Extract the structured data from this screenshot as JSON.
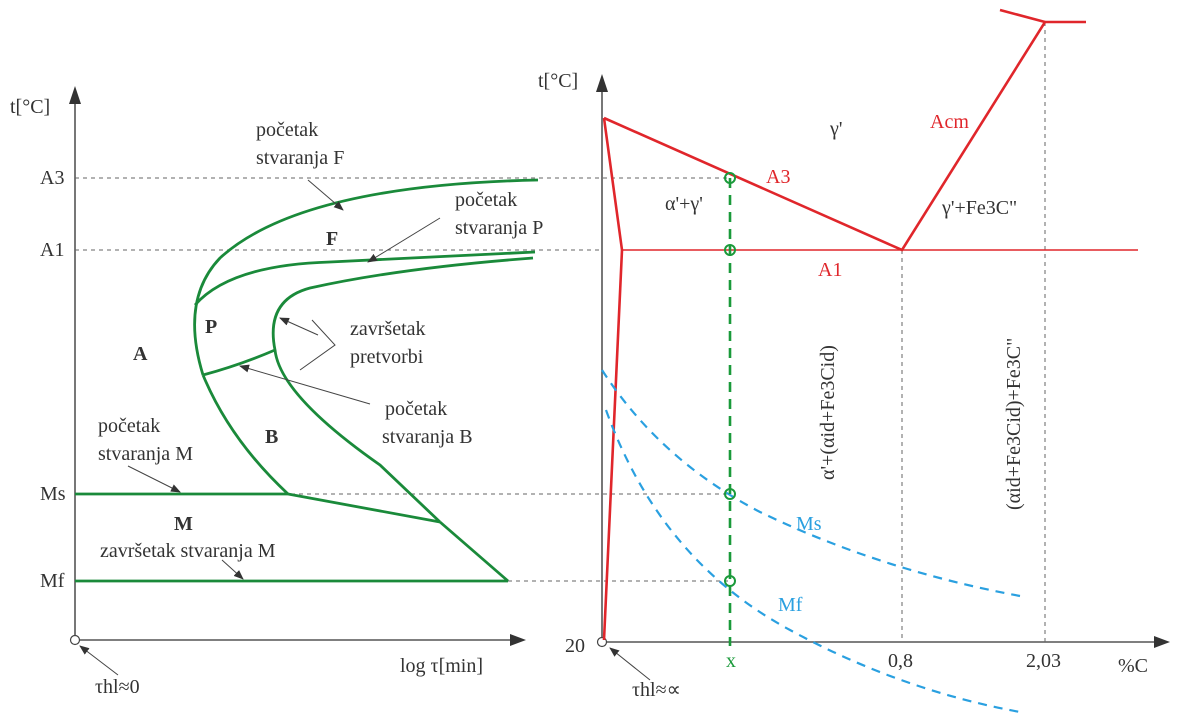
{
  "left": {
    "y_axis_label": "t[°C]",
    "x_axis_label": "log τ[min]",
    "origin_label": "τhl≈0",
    "ticks": {
      "a3": "A3",
      "a1": "A1",
      "ms": "Ms",
      "mf": "Mf"
    },
    "regions": {
      "A": "A",
      "F": "F",
      "P": "P",
      "B": "B",
      "M": "M"
    },
    "notes": {
      "start_f_1": "početak",
      "start_f_2": "stvaranja F",
      "start_p_1": "početak",
      "start_p_2": "stvaranja P",
      "end_t_1": "završetak",
      "end_t_2": "pretvorbi",
      "start_b_1": "početak",
      "start_b_2": "stvaranja B",
      "start_m_1": "početak",
      "start_m_2": "stvaranja M",
      "end_m": "završetak stvaranja M"
    }
  },
  "right": {
    "y_axis_label": "t[°C]",
    "x_axis_label": "%C",
    "origin_value": "20",
    "origin_label": "τhl≈∝",
    "x_marker": "x",
    "x_ticks": [
      "0,8",
      "2,03"
    ],
    "curves": {
      "a3": "A3",
      "a1": "A1",
      "acm": "Acm",
      "ms": "Ms",
      "mf": "Mf"
    },
    "regions": {
      "gamma": "γ'",
      "alpha_gamma": "α'+γ'",
      "gamma_fe3c": "γ'+Fe3C\"",
      "alpha_mix": "α'+(αid+Fe3Cid)",
      "pearlite_mix": "(αid+Fe3Cid)+Fe3C\""
    }
  },
  "colors": {
    "green": "#1a8a3a",
    "red": "#e0262b",
    "blue": "#2aa0e0"
  }
}
